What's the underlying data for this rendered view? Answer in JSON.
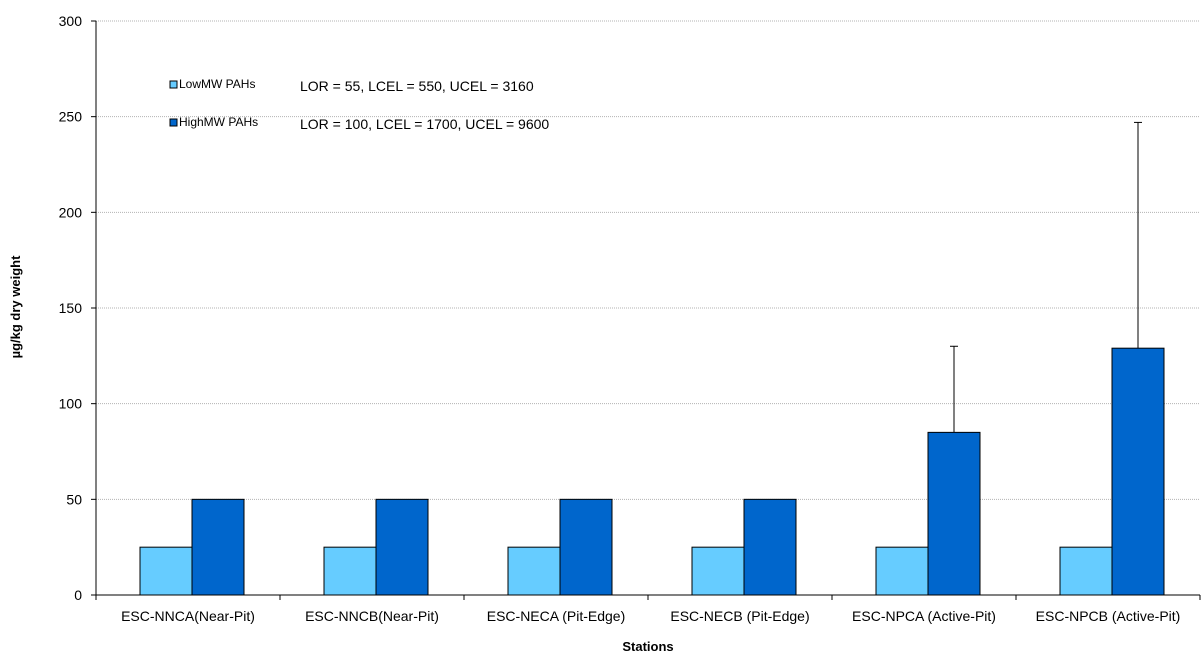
{
  "chart_data": {
    "type": "bar",
    "xlabel": "Stations",
    "ylabel": "µg/kg dry weight",
    "ylim": [
      0,
      300
    ],
    "yticks": [
      0,
      50,
      100,
      150,
      200,
      250,
      300
    ],
    "grid": true,
    "legend_position": "top-left",
    "categories": [
      "ESC-NNCA(Near-Pit)",
      "ESC-NNCB(Near-Pit)",
      "ESC-NECA (Pit-Edge)",
      "ESC-NECB (Pit-Edge)",
      "ESC-NPCA (Active-Pit)",
      "ESC-NPCB (Active-Pit)"
    ],
    "series": [
      {
        "name": "LowMW PAHs",
        "color": "#66ccff",
        "values": [
          25,
          25,
          25,
          25,
          25,
          25
        ]
      },
      {
        "name": "HighMW PAHs",
        "color": "#0066cc",
        "values": [
          50,
          50,
          50,
          50,
          85,
          129
        ],
        "error_upper": [
          null,
          null,
          null,
          null,
          130,
          247
        ]
      }
    ],
    "annotations": [
      "LOR = 55, LCEL = 550, UCEL = 3160",
      "LOR = 100, LCEL = 1700, UCEL = 9600"
    ]
  }
}
